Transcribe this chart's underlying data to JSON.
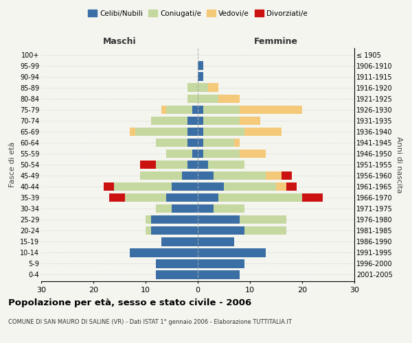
{
  "age_groups": [
    "0-4",
    "5-9",
    "10-14",
    "15-19",
    "20-24",
    "25-29",
    "30-34",
    "35-39",
    "40-44",
    "45-49",
    "50-54",
    "55-59",
    "60-64",
    "65-69",
    "70-74",
    "75-79",
    "80-84",
    "85-89",
    "90-94",
    "95-99",
    "100+"
  ],
  "birth_years": [
    "2001-2005",
    "1996-2000",
    "1991-1995",
    "1986-1990",
    "1981-1985",
    "1976-1980",
    "1971-1975",
    "1966-1970",
    "1961-1965",
    "1956-1960",
    "1951-1955",
    "1946-1950",
    "1941-1945",
    "1936-1940",
    "1931-1935",
    "1926-1930",
    "1921-1925",
    "1916-1920",
    "1911-1915",
    "1906-1910",
    "≤ 1905"
  ],
  "colors": {
    "celibi": "#3a6ea5",
    "coniugati": "#c5d8a0",
    "vedovi": "#f5c97a",
    "divorziati": "#cc1111"
  },
  "male": {
    "celibi": [
      8,
      8,
      13,
      7,
      9,
      9,
      5,
      6,
      5,
      3,
      2,
      1,
      2,
      2,
      2,
      1,
      0,
      0,
      0,
      0,
      0
    ],
    "coniugati": [
      0,
      0,
      0,
      0,
      1,
      1,
      3,
      8,
      11,
      8,
      6,
      5,
      6,
      10,
      7,
      5,
      2,
      2,
      0,
      0,
      0
    ],
    "vedovi": [
      0,
      0,
      0,
      0,
      0,
      0,
      0,
      0,
      0,
      0,
      0,
      0,
      0,
      1,
      0,
      1,
      0,
      0,
      0,
      0,
      0
    ],
    "divorziati": [
      0,
      0,
      0,
      0,
      0,
      0,
      0,
      3,
      2,
      0,
      3,
      0,
      0,
      0,
      0,
      0,
      0,
      0,
      0,
      0,
      0
    ]
  },
  "female": {
    "nubili": [
      8,
      9,
      13,
      7,
      9,
      8,
      3,
      4,
      5,
      3,
      2,
      1,
      1,
      1,
      1,
      1,
      0,
      0,
      1,
      1,
      0
    ],
    "coniugate": [
      0,
      0,
      0,
      0,
      8,
      9,
      6,
      16,
      10,
      10,
      7,
      7,
      6,
      8,
      7,
      7,
      4,
      2,
      0,
      0,
      0
    ],
    "vedove": [
      0,
      0,
      0,
      0,
      0,
      0,
      0,
      0,
      2,
      3,
      0,
      5,
      1,
      7,
      4,
      12,
      4,
      2,
      0,
      0,
      0
    ],
    "divorziate": [
      0,
      0,
      0,
      0,
      0,
      0,
      0,
      4,
      2,
      2,
      0,
      0,
      0,
      0,
      0,
      0,
      0,
      0,
      0,
      0,
      0
    ]
  },
  "xlim": 30,
  "title": "Popolazione per età, sesso e stato civile - 2006",
  "subtitle": "COMUNE DI SAN MAURO DI SALINE (VR) - Dati ISTAT 1° gennaio 2006 - Elaborazione TUTTITALIA.IT",
  "xlabel_left": "Maschi",
  "xlabel_right": "Femmine",
  "ylabel_left": "Fasce di età",
  "ylabel_right": "Anni di nascita",
  "bg_color": "#f5f5f0",
  "grid_color": "#bbbbbb"
}
